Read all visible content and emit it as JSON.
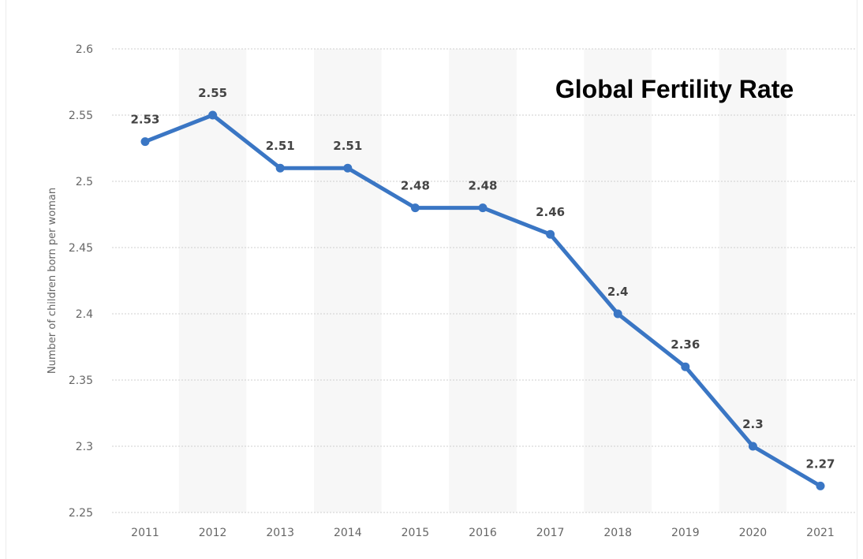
{
  "chart_data": {
    "type": "line",
    "title": "Global Fertility Rate",
    "ylabel": "Number of children born per woman",
    "xlabel": "",
    "categories": [
      "2011",
      "2012",
      "2013",
      "2014",
      "2015",
      "2016",
      "2017",
      "2018",
      "2019",
      "2020",
      "2021"
    ],
    "series": [
      {
        "values": [
          2.53,
          2.55,
          2.51,
          2.51,
          2.48,
          2.48,
          2.46,
          2.4,
          2.36,
          2.3,
          2.27
        ],
        "labels": [
          "2.53",
          "2.55",
          "2.51",
          "2.51",
          "2.48",
          "2.48",
          "2.46",
          "2.4",
          "2.36",
          "2.3",
          "2.27"
        ]
      }
    ],
    "ylim": [
      2.25,
      2.6
    ],
    "yticks": [
      2.25,
      2.3,
      2.35,
      2.4,
      2.45,
      2.5,
      2.55,
      2.6
    ],
    "ytick_labels": [
      "2.25",
      "2.3",
      "2.35",
      "2.4",
      "2.45",
      "2.5",
      "2.55",
      "2.6"
    ],
    "grid": true,
    "colors": {
      "line": "#3a76c4",
      "grid": "#cfcfcf",
      "band": "#f7f7f7"
    }
  }
}
